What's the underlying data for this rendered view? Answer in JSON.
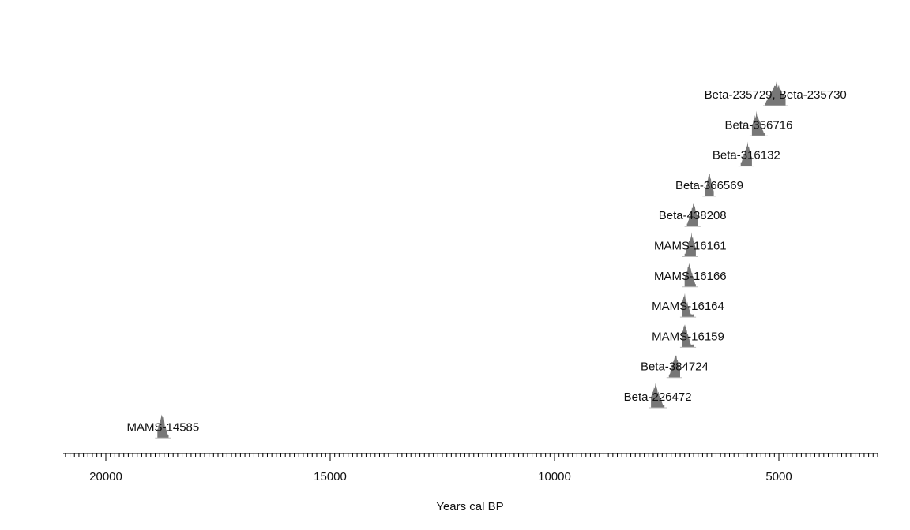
{
  "chart_data": {
    "type": "density",
    "title": "",
    "xlabel": "Years cal BP",
    "ylabel": "",
    "xlim": [
      21000,
      2800
    ],
    "x_reversed": true,
    "x_ticks": [
      20000,
      15000,
      10000,
      5000
    ],
    "x_tick_labels": [
      "20000",
      "15000",
      "10000",
      "5000"
    ],
    "x_minor_tick_step": 100,
    "grid": false,
    "mark_color": "#777777",
    "samples": [
      {
        "label": "Beta-235729, Beta-235730",
        "range_cal_bp": [
          4850,
          5300
        ],
        "peak_cal_bp": 5050
      },
      {
        "label": "Beta-356716",
        "range_cal_bp": [
          5300,
          5600
        ],
        "peak_cal_bp": 5500
      },
      {
        "label": "Beta-316132",
        "range_cal_bp": [
          5600,
          5850
        ],
        "peak_cal_bp": 5700
      },
      {
        "label": "Beta-366569",
        "range_cal_bp": [
          6450,
          6650
        ],
        "peak_cal_bp": 6550
      },
      {
        "label": "Beta-438208",
        "range_cal_bp": [
          6800,
          7050
        ],
        "peak_cal_bp": 6900
      },
      {
        "label": "MAMS-16161",
        "range_cal_bp": [
          6850,
          7100
        ],
        "peak_cal_bp": 6950
      },
      {
        "label": "MAMS-16166",
        "range_cal_bp": [
          6850,
          7100
        ],
        "peak_cal_bp": 7000
      },
      {
        "label": "MAMS-16164",
        "range_cal_bp": [
          6900,
          7150
        ],
        "peak_cal_bp": 7100
      },
      {
        "label": "MAMS-16159",
        "range_cal_bp": [
          6900,
          7150
        ],
        "peak_cal_bp": 7100
      },
      {
        "label": "Beta-384724",
        "range_cal_bp": [
          7200,
          7450
        ],
        "peak_cal_bp": 7300
      },
      {
        "label": "Beta-226472",
        "range_cal_bp": [
          7550,
          7850
        ],
        "peak_cal_bp": 7750
      },
      {
        "label": "MAMS-14585",
        "range_cal_bp": [
          18600,
          18850
        ],
        "peak_cal_bp": 18750
      }
    ]
  }
}
